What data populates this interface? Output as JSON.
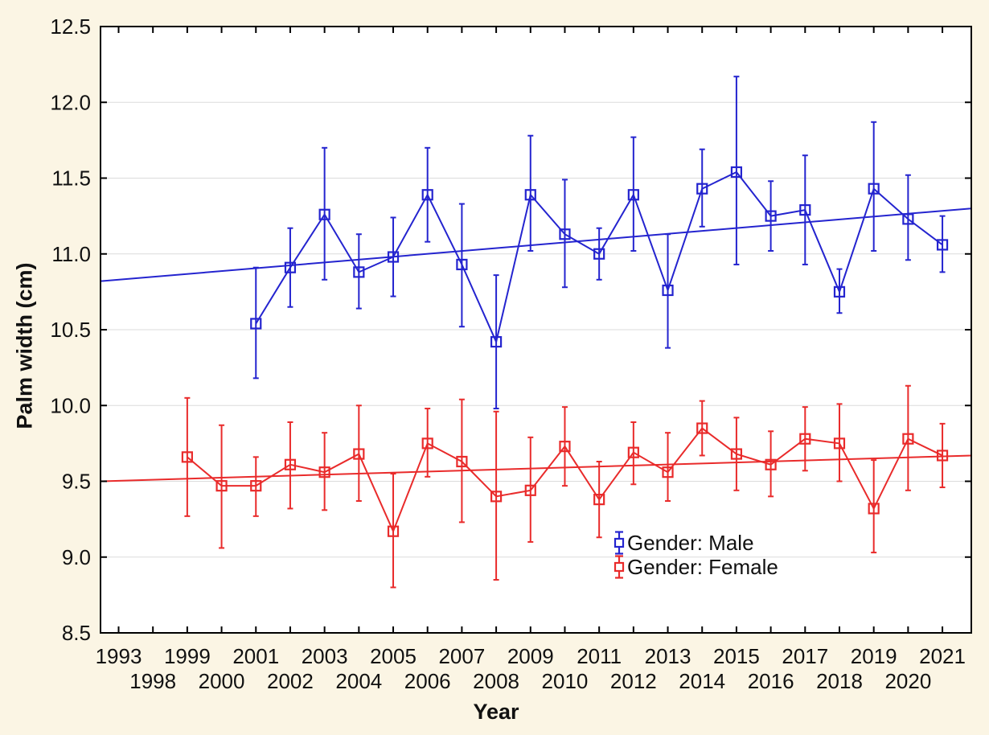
{
  "page": {
    "background_color": "#FBF5E4"
  },
  "chart_data": {
    "type": "line",
    "title": "",
    "xlabel": "Year",
    "ylabel": "Palm width (cm)",
    "ylim": [
      8.5,
      12.5
    ],
    "ytick_step": 0.5,
    "ytick_labels": [
      "8.5",
      "9.0",
      "9.5",
      "10.0",
      "10.5",
      "11.0",
      "11.5",
      "12.0",
      "12.5"
    ],
    "categories": [
      "1993",
      "1998",
      "1999",
      "2000",
      "2001",
      "2002",
      "2003",
      "2004",
      "2005",
      "2006",
      "2007",
      "2008",
      "2009",
      "2010",
      "2011",
      "2012",
      "2013",
      "2014",
      "2015",
      "2016",
      "2017",
      "2018",
      "2019",
      "2020",
      "2021"
    ],
    "x_tick_label_rows": "odd years on upper row, even years on lower row",
    "grid": "horizontal",
    "plot_background": "#FFFFFF",
    "grid_color": "#DBDBDB",
    "axis_color": "#000000",
    "legend_position": "inside bottom-right",
    "marker": "open-square with vertical error bars",
    "series": [
      {
        "name": "Gender: Male",
        "color": "#2424CF",
        "trend_line": {
          "value_at_plot_left": 10.82,
          "value_at_plot_right": 11.3
        },
        "points": [
          {
            "year": "2001",
            "mean": 10.54,
            "lo": 10.18,
            "hi": 10.91
          },
          {
            "year": "2002",
            "mean": 10.91,
            "lo": 10.65,
            "hi": 11.17
          },
          {
            "year": "2003",
            "mean": 11.26,
            "lo": 10.83,
            "hi": 11.7
          },
          {
            "year": "2004",
            "mean": 10.88,
            "lo": 10.64,
            "hi": 11.13
          },
          {
            "year": "2005",
            "mean": 10.98,
            "lo": 10.72,
            "hi": 11.24
          },
          {
            "year": "2006",
            "mean": 11.39,
            "lo": 11.08,
            "hi": 11.7
          },
          {
            "year": "2007",
            "mean": 10.93,
            "lo": 10.52,
            "hi": 11.33
          },
          {
            "year": "2008",
            "mean": 10.42,
            "lo": 9.98,
            "hi": 10.86
          },
          {
            "year": "2009",
            "mean": 11.39,
            "lo": 11.02,
            "hi": 11.78
          },
          {
            "year": "2010",
            "mean": 11.13,
            "lo": 10.78,
            "hi": 11.49
          },
          {
            "year": "2011",
            "mean": 11.0,
            "lo": 10.83,
            "hi": 11.17
          },
          {
            "year": "2012",
            "mean": 11.39,
            "lo": 11.02,
            "hi": 11.77
          },
          {
            "year": "2013",
            "mean": 10.76,
            "lo": 10.38,
            "hi": 11.13
          },
          {
            "year": "2014",
            "mean": 11.43,
            "lo": 11.18,
            "hi": 11.69
          },
          {
            "year": "2015",
            "mean": 11.54,
            "lo": 10.93,
            "hi": 12.17
          },
          {
            "year": "2016",
            "mean": 11.25,
            "lo": 11.02,
            "hi": 11.48
          },
          {
            "year": "2017",
            "mean": 11.29,
            "lo": 10.93,
            "hi": 11.65
          },
          {
            "year": "2018",
            "mean": 10.75,
            "lo": 10.61,
            "hi": 10.9
          },
          {
            "year": "2019",
            "mean": 11.43,
            "lo": 11.02,
            "hi": 11.87
          },
          {
            "year": "2020",
            "mean": 11.23,
            "lo": 10.96,
            "hi": 11.52
          },
          {
            "year": "2021",
            "mean": 11.06,
            "lo": 10.88,
            "hi": 11.25
          }
        ]
      },
      {
        "name": "Gender: Female",
        "color": "#E92B2B",
        "trend_line": {
          "value_at_plot_left": 9.5,
          "value_at_plot_right": 9.67
        },
        "points": [
          {
            "year": "1999",
            "mean": 9.66,
            "lo": 9.27,
            "hi": 10.05
          },
          {
            "year": "2000",
            "mean": 9.47,
            "lo": 9.06,
            "hi": 9.87
          },
          {
            "year": "2001",
            "mean": 9.47,
            "lo": 9.27,
            "hi": 9.66
          },
          {
            "year": "2002",
            "mean": 9.61,
            "lo": 9.32,
            "hi": 9.89
          },
          {
            "year": "2003",
            "mean": 9.56,
            "lo": 9.31,
            "hi": 9.82
          },
          {
            "year": "2004",
            "mean": 9.68,
            "lo": 9.37,
            "hi": 10.0
          },
          {
            "year": "2005",
            "mean": 9.17,
            "lo": 8.8,
            "hi": 9.55
          },
          {
            "year": "2006",
            "mean": 9.75,
            "lo": 9.53,
            "hi": 9.98
          },
          {
            "year": "2007",
            "mean": 9.63,
            "lo": 9.23,
            "hi": 10.04
          },
          {
            "year": "2008",
            "mean": 9.4,
            "lo": 8.85,
            "hi": 9.96
          },
          {
            "year": "2009",
            "mean": 9.44,
            "lo": 9.1,
            "hi": 9.79
          },
          {
            "year": "2010",
            "mean": 9.73,
            "lo": 9.47,
            "hi": 9.99
          },
          {
            "year": "2011",
            "mean": 9.38,
            "lo": 9.13,
            "hi": 9.63
          },
          {
            "year": "2012",
            "mean": 9.69,
            "lo": 9.48,
            "hi": 9.89
          },
          {
            "year": "2013",
            "mean": 9.56,
            "lo": 9.37,
            "hi": 9.82
          },
          {
            "year": "2014",
            "mean": 9.85,
            "lo": 9.67,
            "hi": 10.03
          },
          {
            "year": "2015",
            "mean": 9.68,
            "lo": 9.44,
            "hi": 9.92
          },
          {
            "year": "2016",
            "mean": 9.61,
            "lo": 9.4,
            "hi": 9.83
          },
          {
            "year": "2017",
            "mean": 9.78,
            "lo": 9.57,
            "hi": 9.99
          },
          {
            "year": "2018",
            "mean": 9.75,
            "lo": 9.5,
            "hi": 10.01
          },
          {
            "year": "2019",
            "mean": 9.32,
            "lo": 9.03,
            "hi": 9.64
          },
          {
            "year": "2020",
            "mean": 9.78,
            "lo": 9.44,
            "hi": 10.13
          },
          {
            "year": "2021",
            "mean": 9.67,
            "lo": 9.46,
            "hi": 9.88
          }
        ]
      }
    ]
  }
}
